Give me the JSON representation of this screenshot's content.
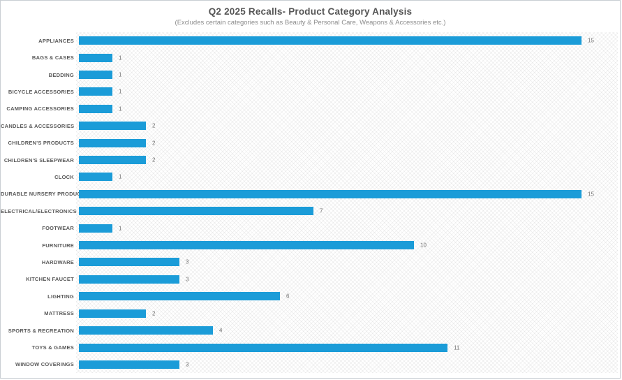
{
  "chart": {
    "title": "Q2 2025 Recalls- Product Category Analysis",
    "subtitle": "(Excludes certain categories such as Beauty & Personal Care, Weapons & Accessories etc.)"
  },
  "chart_data": {
    "type": "bar",
    "orientation": "horizontal",
    "title": "Q2 2025 Recalls- Product Category Analysis",
    "subtitle": "(Excludes certain categories such as Beauty & Personal Care, Weapons & Accessories etc.)",
    "xlabel": "",
    "ylabel": "",
    "xlim": [
      0,
      16.1
    ],
    "grid": false,
    "legend": false,
    "data_labels": true,
    "bar_color": "#1b9cd8",
    "value_label_color": "#707070",
    "category_label_color": "#595959",
    "background_pattern": "diagonal-crosshatch",
    "categories": [
      "APPLIANCES",
      "BAGS & CASES",
      "BEDDING",
      "BICYCLE ACCESSORIES",
      "CAMPING ACCESSORIES",
      "CANDLES & ACCESSORIES",
      "CHILDREN'S PRODUCTS",
      "CHILDREN'S SLEEPWEAR",
      "CLOCK",
      "DURABLE NURSERY PRODUCT",
      "ELECTRICAL/ELECTRONICS",
      "FOOTWEAR",
      "FURNITURE",
      "HARDWARE",
      "KITCHEN FAUCET",
      "LIGHTING",
      "MATTRESS",
      "SPORTS & RECREATION",
      "TOYS & GAMES",
      "WINDOW COVERINGS"
    ],
    "values": [
      15,
      1,
      1,
      1,
      1,
      2,
      2,
      2,
      1,
      15,
      7,
      1,
      10,
      3,
      3,
      6,
      2,
      4,
      11,
      3
    ]
  }
}
